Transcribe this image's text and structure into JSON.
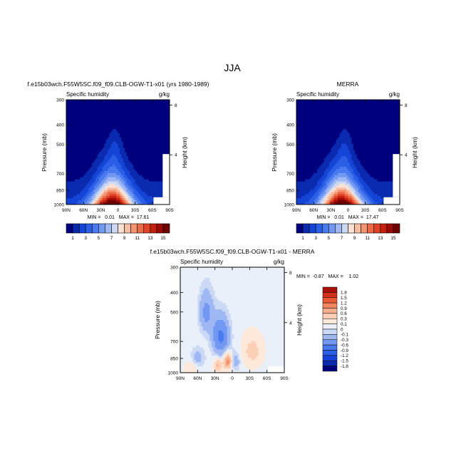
{
  "figure": {
    "title": "JJA",
    "diff_title": "f.e15b03wch.F55W5SC.f09_f09.CLB-OGW-T1-x01 - MERRA"
  },
  "chart_data": [
    {
      "type": "heatmap",
      "panel": "model",
      "title": "f.e15b03wch.F55W5SC.f09_f09.CLB-OGW-T1-x01 (yrs 1980-1989)",
      "subtitle_left": "Specific humidity",
      "subtitle_right": "g/kg",
      "xlabel": "",
      "ylabel": "Pressure (mb)",
      "ylabel_right": "Height (km)",
      "x_ticks": [
        "90N",
        "60N",
        "30N",
        "0",
        "30S",
        "60S",
        "90S"
      ],
      "x_range": [
        90,
        -90
      ],
      "y_ticks": [
        300,
        400,
        500,
        700,
        850,
        1000
      ],
      "y_range": [
        1000,
        300
      ],
      "y_scale": "log",
      "right_ticks": [
        8,
        4
      ],
      "stats": "MIN =   0.01   MAX =  17.61",
      "contour_levels": [
        1,
        2,
        3,
        4,
        5,
        6,
        7,
        8,
        9,
        10,
        11,
        12,
        13,
        14,
        15
      ],
      "colorbar_labels": [
        "1",
        "3",
        "5",
        "7",
        "9",
        "11",
        "13",
        "15"
      ],
      "min": 0.01,
      "max": 17.61
    },
    {
      "type": "heatmap",
      "panel": "obs",
      "title": "MERRA",
      "subtitle_left": "Specific humidity",
      "subtitle_right": "g/kg",
      "xlabel": "",
      "ylabel": "Pressure (mb)",
      "ylabel_right": "Height (km)",
      "x_ticks": [
        "90N",
        "60N",
        "30N",
        "0",
        "30S",
        "60S",
        "90S"
      ],
      "x_range": [
        90,
        -90
      ],
      "y_ticks": [
        300,
        400,
        500,
        700,
        850,
        1000
      ],
      "y_range": [
        1000,
        300
      ],
      "y_scale": "log",
      "right_ticks": [
        8,
        4
      ],
      "stats": "MIN =   0.01   MAX =  17.47",
      "contour_levels": [
        1,
        2,
        3,
        4,
        5,
        6,
        7,
        8,
        9,
        10,
        11,
        12,
        13,
        14,
        15
      ],
      "colorbar_labels": [
        "1",
        "3",
        "5",
        "7",
        "9",
        "11",
        "13",
        "15"
      ],
      "min": 0.01,
      "max": 17.47
    },
    {
      "type": "heatmap",
      "panel": "diff",
      "title": "f.e15b03wch.F55W5SC.f09_f09.CLB-OGW-T1-x01 - MERRA",
      "subtitle_left": "Specific humidity",
      "subtitle_right": "g/kg",
      "xlabel": "",
      "ylabel": "Pressure (mb)",
      "ylabel_right": "Height (km)",
      "x_ticks": [
        "90N",
        "60N",
        "30N",
        "0",
        "30S",
        "60S",
        "90S"
      ],
      "x_range": [
        90,
        -90
      ],
      "y_ticks": [
        300,
        400,
        500,
        700,
        850,
        1000
      ],
      "y_range": [
        1000,
        300
      ],
      "y_scale": "log",
      "right_ticks": [
        8,
        4
      ],
      "stats": "MIN =  -0.87   MAX =    1.02",
      "contour_levels": [
        -1.8,
        -1.5,
        -1.2,
        -0.9,
        -0.6,
        -0.3,
        -0.1,
        0,
        0.1,
        0.3,
        0.6,
        0.9,
        1.2,
        1.5,
        1.8
      ],
      "colorbar_labels": [
        "1.8",
        "1.5",
        "1.2",
        "0.9",
        "0.6",
        "0.3",
        "0.1",
        "0",
        "-0.1",
        "-0.3",
        "-0.6",
        "-0.9",
        "-1.2",
        "-1.5",
        "-1.8"
      ],
      "min": -0.87,
      "max": 1.02
    }
  ],
  "colors": {
    "humidity_scale": [
      "#00007f",
      "#0a2bb0",
      "#1545d6",
      "#2a5fe6",
      "#4a7af0",
      "#7198f2",
      "#9fb8f3",
      "#cbd9f5",
      "#fbe1d4",
      "#f7bda2",
      "#f39573",
      "#ec6b47",
      "#df4226",
      "#c4200f",
      "#9d0b06",
      "#6e0000"
    ],
    "diff_scale": [
      "#00007f",
      "#0a2bb0",
      "#1545d6",
      "#2a5fe6",
      "#4a7af0",
      "#7198f2",
      "#9fb8f3",
      "#cbd9f5",
      "#e9f0fa",
      "#fde8da",
      "#fbd0b6",
      "#f7ad8c",
      "#f3865f",
      "#e85a36",
      "#d2311a",
      "#a8100a"
    ]
  }
}
